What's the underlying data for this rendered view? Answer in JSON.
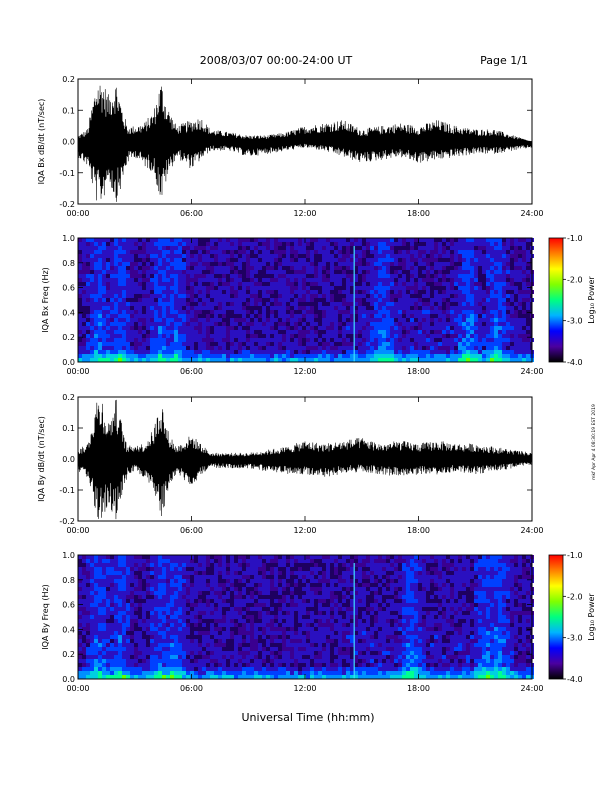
{
  "header": {
    "title": "2008/03/07  00:00-24:00 UT",
    "page": "Page 1/1"
  },
  "footer_xlabel": "Universal Time (hh:mm)",
  "side_note": "mkf Apr Apr 4 08:30:19 EST 2019",
  "colors": {
    "trace": "#000000",
    "spectrogram_background": "#1e0060",
    "colorbar": [
      "#000000",
      "#4b00a0",
      "#0000ff",
      "#00b4ff",
      "#00ff80",
      "#80ff00",
      "#ffff00",
      "#ff8000",
      "#ff0000"
    ]
  },
  "chart_data": [
    {
      "type": "line",
      "ylabel": "IQA Bx dB/dt (nT/sec)",
      "xlim": [
        "00:00",
        "24:00"
      ],
      "ylim": [
        -0.2,
        0.2
      ],
      "xticks": [
        "00:00",
        "06:00",
        "12:00",
        "18:00",
        "24:00"
      ],
      "yticks": [
        "-0.2",
        "-0.1",
        "0.0",
        "0.1",
        "0.2"
      ],
      "envelope": {
        "x_hours": [
          0,
          0.5,
          1.0,
          1.3,
          1.6,
          2.0,
          2.3,
          2.6,
          3.0,
          3.5,
          4.0,
          4.4,
          4.7,
          5.2,
          6.0,
          6.5,
          7.0,
          8.0,
          9.0,
          10.0,
          11.0,
          12.0,
          13.0,
          14.0,
          15.0,
          16.0,
          17.0,
          18.0,
          19.0,
          20.0,
          21.0,
          22.0,
          23.0,
          24.0
        ],
        "upper": [
          0.02,
          0.04,
          0.2,
          0.2,
          0.15,
          0.2,
          0.12,
          0.05,
          0.05,
          0.06,
          0.1,
          0.2,
          0.12,
          0.05,
          0.07,
          0.08,
          0.04,
          0.03,
          0.02,
          0.02,
          0.03,
          0.05,
          0.06,
          0.07,
          0.04,
          0.05,
          0.06,
          0.05,
          0.07,
          0.05,
          0.04,
          0.04,
          0.02,
          0.0
        ],
        "lower": [
          -0.05,
          -0.08,
          -0.2,
          -0.2,
          -0.12,
          -0.2,
          -0.15,
          -0.07,
          -0.05,
          -0.08,
          -0.1,
          -0.2,
          -0.12,
          -0.05,
          -0.09,
          -0.06,
          -0.03,
          -0.03,
          -0.05,
          -0.04,
          -0.03,
          -0.02,
          -0.03,
          -0.05,
          -0.07,
          -0.06,
          -0.05,
          -0.07,
          -0.06,
          -0.05,
          -0.04,
          -0.04,
          -0.03,
          -0.02
        ]
      }
    },
    {
      "type": "heatmap",
      "ylabel": "IQA Bx Freq (Hz)",
      "xlim": [
        "00:00",
        "24:00"
      ],
      "ylim": [
        0.0,
        1.0
      ],
      "xticks": [
        "00:00",
        "06:00",
        "12:00",
        "18:00",
        "24:00"
      ],
      "yticks": [
        "0.0",
        "0.2",
        "0.4",
        "0.6",
        "0.8",
        "1.0"
      ],
      "colorbar": {
        "label": "Log₁₀ Power",
        "range": [
          -4.0,
          -1.0
        ],
        "ticks": [
          "-1.0",
          "-2.0",
          "-3.0",
          "-4.0"
        ]
      },
      "features": {
        "spike_hour": 14.6,
        "active_hours": [
          1.0,
          2.1,
          4.3,
          5.0,
          16.0,
          20.5,
          22.0
        ]
      }
    },
    {
      "type": "line",
      "ylabel": "IQA By dB/dt (nT/sec)",
      "xlim": [
        "00:00",
        "24:00"
      ],
      "ylim": [
        -0.2,
        0.2
      ],
      "xticks": [
        "00:00",
        "06:00",
        "12:00",
        "18:00",
        "24:00"
      ],
      "yticks": [
        "-0.2",
        "-0.1",
        "0.0",
        "0.1",
        "0.2"
      ],
      "envelope": {
        "x_hours": [
          0,
          0.5,
          1.0,
          1.3,
          1.6,
          2.0,
          2.3,
          2.6,
          3.0,
          3.5,
          4.0,
          4.4,
          4.7,
          5.2,
          6.0,
          6.5,
          7.0,
          8.0,
          9.0,
          10.0,
          11.0,
          12.0,
          13.0,
          14.0,
          15.0,
          16.0,
          17.0,
          18.0,
          19.0,
          20.0,
          21.0,
          22.0,
          23.0,
          24.0
        ],
        "upper": [
          0.03,
          0.05,
          0.2,
          0.2,
          0.12,
          0.2,
          0.12,
          0.04,
          0.05,
          0.05,
          0.1,
          0.2,
          0.1,
          0.04,
          0.08,
          0.05,
          0.02,
          0.02,
          0.02,
          0.03,
          0.04,
          0.06,
          0.05,
          0.06,
          0.07,
          0.05,
          0.06,
          0.05,
          0.06,
          0.05,
          0.05,
          0.04,
          0.03,
          0.02
        ],
        "lower": [
          -0.04,
          -0.06,
          -0.2,
          -0.2,
          -0.15,
          -0.2,
          -0.13,
          -0.06,
          -0.04,
          -0.06,
          -0.12,
          -0.2,
          -0.12,
          -0.05,
          -0.09,
          -0.05,
          -0.03,
          -0.03,
          -0.03,
          -0.04,
          -0.05,
          -0.05,
          -0.06,
          -0.05,
          -0.04,
          -0.05,
          -0.06,
          -0.05,
          -0.05,
          -0.04,
          -0.05,
          -0.04,
          -0.03,
          -0.02
        ]
      }
    },
    {
      "type": "heatmap",
      "ylabel": "IQA By Freq (Hz)",
      "xlim": [
        "00:00",
        "24:00"
      ],
      "ylim": [
        0.0,
        1.0
      ],
      "xticks": [
        "00:00",
        "06:00",
        "12:00",
        "18:00",
        "24:00"
      ],
      "yticks": [
        "0.0",
        "0.2",
        "0.4",
        "0.6",
        "0.8",
        "1.0"
      ],
      "colorbar": {
        "label": "Log₁₀ Power",
        "range": [
          -4.0,
          -1.0
        ],
        "ticks": [
          "-1.0",
          "-2.0",
          "-3.0",
          "-4.0"
        ]
      },
      "features": {
        "spike_hour": 14.6,
        "active_hours": [
          1.0,
          2.1,
          4.3,
          5.0,
          17.5,
          21.5,
          22.2
        ]
      }
    }
  ]
}
